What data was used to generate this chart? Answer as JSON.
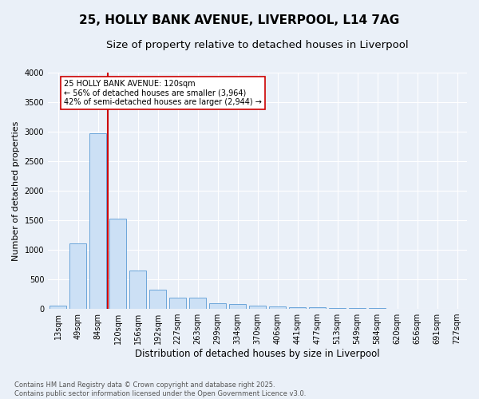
{
  "title": "25, HOLLY BANK AVENUE, LIVERPOOL, L14 7AG",
  "subtitle": "Size of property relative to detached houses in Liverpool",
  "xlabel": "Distribution of detached houses by size in Liverpool",
  "ylabel": "Number of detached properties",
  "categories": [
    "13sqm",
    "49sqm",
    "84sqm",
    "120sqm",
    "156sqm",
    "192sqm",
    "227sqm",
    "263sqm",
    "299sqm",
    "334sqm",
    "370sqm",
    "406sqm",
    "441sqm",
    "477sqm",
    "513sqm",
    "549sqm",
    "584sqm",
    "620sqm",
    "656sqm",
    "691sqm",
    "727sqm"
  ],
  "values": [
    55,
    1110,
    2970,
    1530,
    650,
    330,
    195,
    185,
    90,
    80,
    55,
    35,
    30,
    25,
    15,
    10,
    8,
    5,
    3,
    2,
    1
  ],
  "bar_color": "#cce0f5",
  "bar_edge_color": "#5b9bd5",
  "vline_color": "#cc0000",
  "annotation_text": "25 HOLLY BANK AVENUE: 120sqm\n← 56% of detached houses are smaller (3,964)\n42% of semi-detached houses are larger (2,944) →",
  "annotation_box_color": "#ffffff",
  "annotation_box_edge": "#cc0000",
  "ylim": [
    0,
    4000
  ],
  "yticks": [
    0,
    500,
    1000,
    1500,
    2000,
    2500,
    3000,
    3500,
    4000
  ],
  "background_color": "#eaf0f8",
  "plot_bg_color": "#eaf0f8",
  "grid_color": "#ffffff",
  "title_fontsize": 11,
  "subtitle_fontsize": 9.5,
  "ylabel_fontsize": 8,
  "xlabel_fontsize": 8.5,
  "tick_fontsize": 7,
  "footer_text": "Contains HM Land Registry data © Crown copyright and database right 2025.\nContains public sector information licensed under the Open Government Licence v3.0."
}
